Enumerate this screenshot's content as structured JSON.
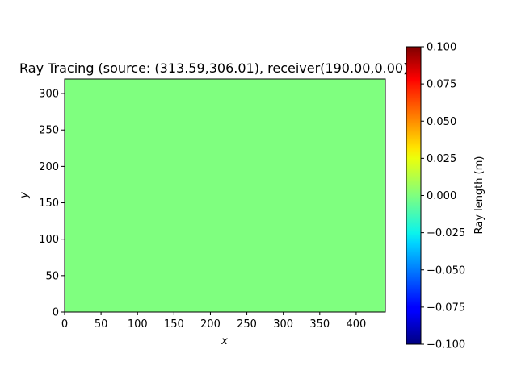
{
  "chart_data": {
    "type": "heatmap",
    "title": "Ray Tracing (source: (313.59,306.01), receiver(190.00,0.00))",
    "xlabel": "x",
    "ylabel": "y",
    "xlim": [
      0,
      440
    ],
    "ylim": [
      0,
      320
    ],
    "x_ticks": [
      "0",
      "50",
      "100",
      "150",
      "200",
      "250",
      "300",
      "350",
      "400"
    ],
    "y_ticks": [
      "0",
      "50",
      "100",
      "150",
      "200",
      "250",
      "300"
    ],
    "x_tick_values": [
      0,
      50,
      100,
      150,
      200,
      250,
      300,
      350,
      400
    ],
    "y_tick_values": [
      0,
      50,
      100,
      150,
      200,
      250,
      300
    ],
    "field_value": 0.0,
    "field_color": "#7fff7f",
    "colorbar": {
      "label": "Ray length (m)",
      "colormap": "jet",
      "range": [
        -0.1,
        0.1
      ],
      "ticks": [
        "0.100",
        "0.075",
        "0.050",
        "0.025",
        "0.000",
        "−0.025",
        "−0.050",
        "−0.075",
        "−0.100"
      ],
      "tick_values": [
        0.1,
        0.075,
        0.05,
        0.025,
        0.0,
        -0.025,
        -0.05,
        -0.075,
        -0.1
      ]
    }
  }
}
